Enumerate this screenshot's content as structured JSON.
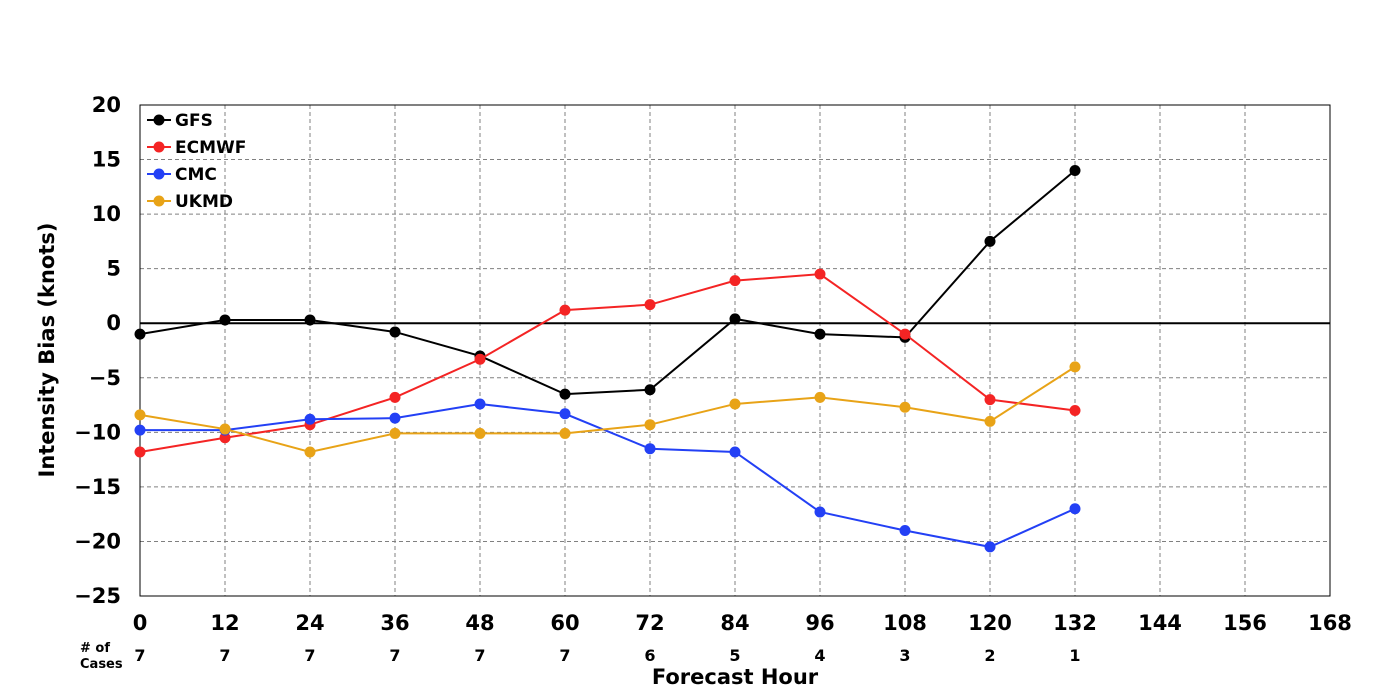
{
  "chart_data": {
    "type": "line",
    "xlabel": "Forecast Hour",
    "ylabel": "Intensity Bias (knots)",
    "xlim": [
      0,
      168
    ],
    "ylim": [
      -25,
      20
    ],
    "xticks": [
      0,
      12,
      24,
      36,
      48,
      60,
      72,
      84,
      96,
      108,
      120,
      132,
      144,
      156,
      168
    ],
    "yticks": [
      -25,
      -20,
      -15,
      -10,
      -5,
      0,
      5,
      10,
      15,
      20
    ],
    "grid": true,
    "legend_position": "top-left",
    "cases_label_line1": "# of",
    "cases_label_line2": "Cases",
    "cases": [
      {
        "x": 0,
        "n": "7"
      },
      {
        "x": 12,
        "n": "7"
      },
      {
        "x": 24,
        "n": "7"
      },
      {
        "x": 36,
        "n": "7"
      },
      {
        "x": 48,
        "n": "7"
      },
      {
        "x": 60,
        "n": "7"
      },
      {
        "x": 72,
        "n": "6"
      },
      {
        "x": 84,
        "n": "5"
      },
      {
        "x": 96,
        "n": "4"
      },
      {
        "x": 108,
        "n": "3"
      },
      {
        "x": 120,
        "n": "2"
      },
      {
        "x": 132,
        "n": "1"
      }
    ],
    "x": [
      0,
      12,
      24,
      36,
      48,
      60,
      72,
      84,
      96,
      108,
      120,
      132
    ],
    "series": [
      {
        "name": "GFS",
        "color": "#000000",
        "values": [
          -1.0,
          0.3,
          0.3,
          -0.8,
          -3.0,
          -6.5,
          -6.1,
          0.4,
          -1.0,
          -1.3,
          7.5,
          14.0
        ]
      },
      {
        "name": "ECMWF",
        "color": "#f42424",
        "values": [
          -11.8,
          -10.5,
          -9.3,
          -6.8,
          -3.3,
          1.2,
          1.7,
          3.9,
          4.5,
          -1.0,
          -7.0,
          -8.0
        ]
      },
      {
        "name": "CMC",
        "color": "#2340f5",
        "values": [
          -9.8,
          -9.8,
          -8.8,
          -8.7,
          -7.4,
          -8.3,
          -11.5,
          -11.8,
          -17.3,
          -19.0,
          -20.5,
          -17.0
        ]
      },
      {
        "name": "UKMD",
        "color": "#e8a317",
        "values": [
          -8.4,
          -9.7,
          -11.8,
          -10.1,
          -10.1,
          -10.1,
          -9.3,
          -7.4,
          -6.8,
          -7.7,
          -9.0,
          -4.0
        ]
      }
    ]
  }
}
